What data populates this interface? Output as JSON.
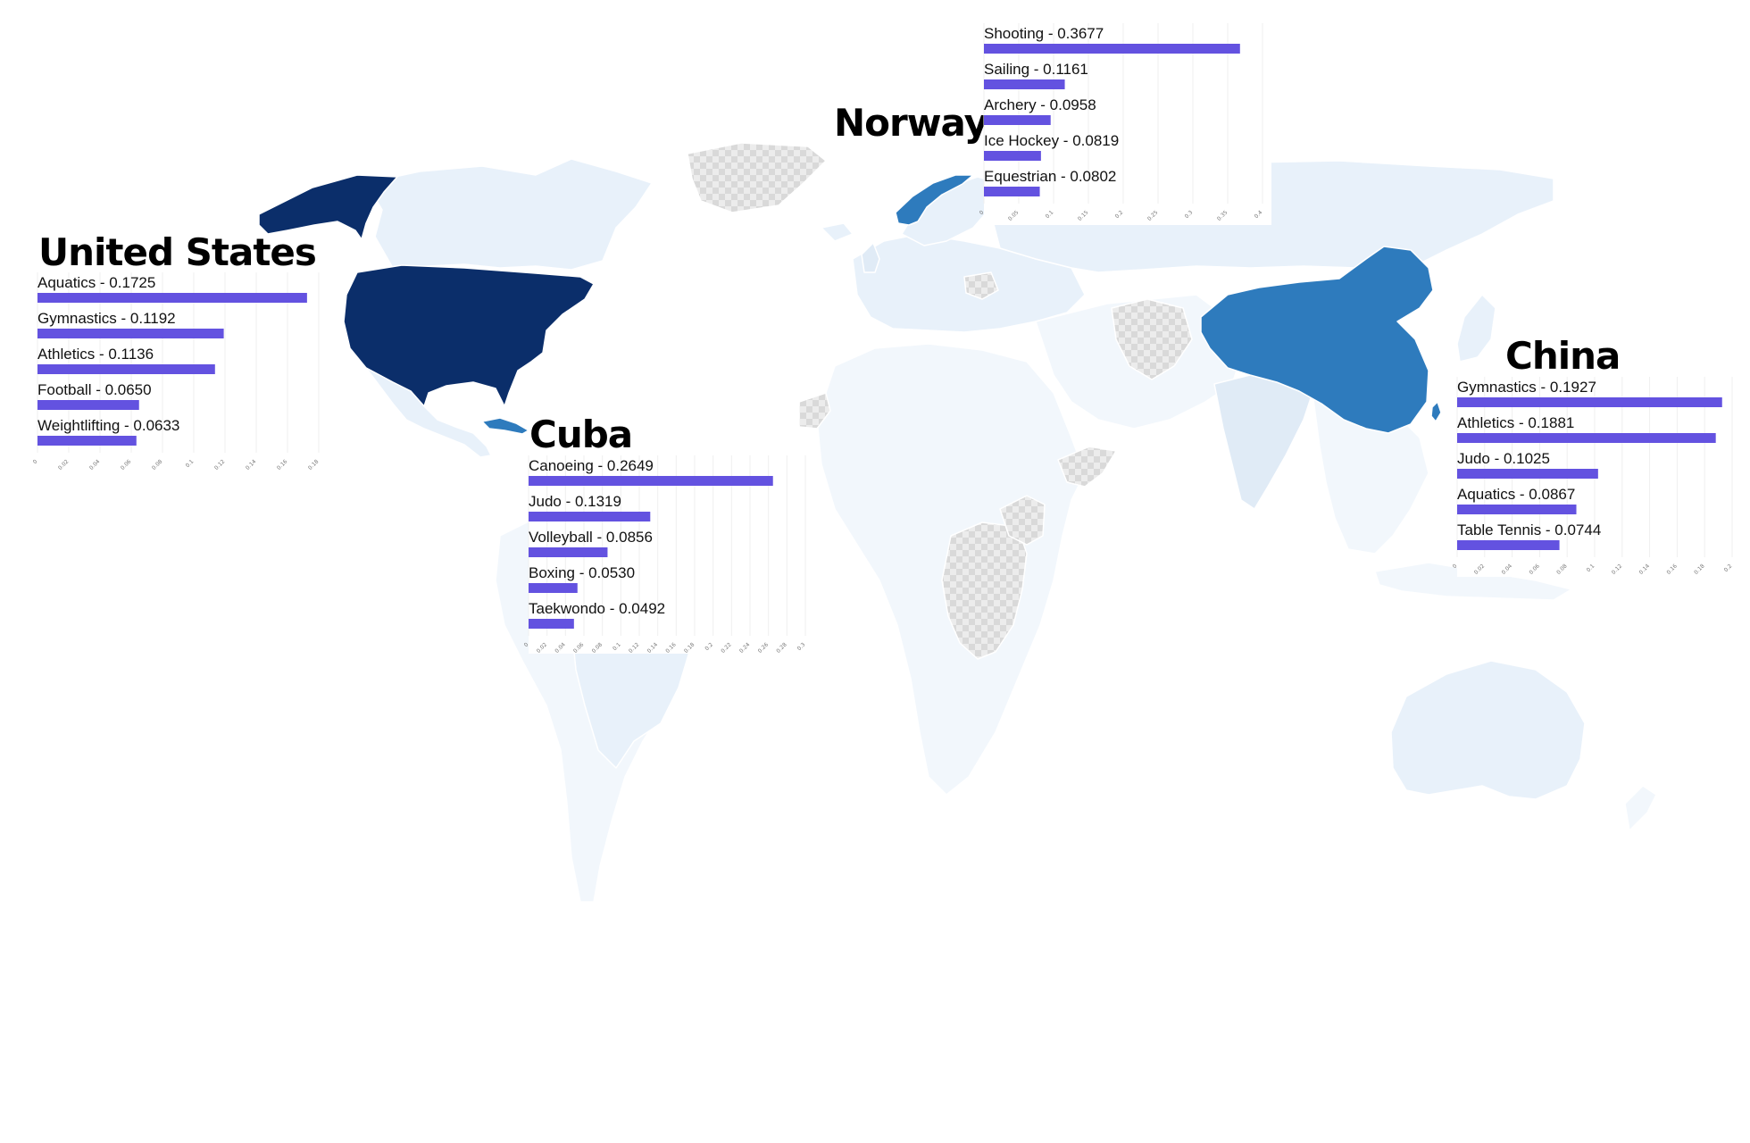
{
  "colors": {
    "background": "#ffffff",
    "land_default": "#e8f1fa",
    "land_light": "#f2f7fc",
    "no_data": "#dcdcdc",
    "rank_high": "#0b2e6a",
    "rank_mid": "#2e7bbd",
    "bar": "#6352e0"
  },
  "highlighted_countries": [
    "United States",
    "Norway",
    "Cuba",
    "China"
  ],
  "panels": [
    {
      "country": "United States",
      "title": "United States",
      "axis_max": 0.18,
      "ticks": [
        "0",
        "0.02",
        "0.04",
        "0.06",
        "0.08",
        "0.1",
        "0.12",
        "0.14",
        "0.16",
        "0.18"
      ],
      "items": [
        {
          "sport": "Aquatics",
          "value": 0.1725,
          "label": "Aquatics - 0.1725"
        },
        {
          "sport": "Gymnastics",
          "value": 0.1192,
          "label": "Gymnastics - 0.1192"
        },
        {
          "sport": "Athletics",
          "value": 0.1136,
          "label": "Athletics - 0.1136"
        },
        {
          "sport": "Football",
          "value": 0.065,
          "label": "Football - 0.0650"
        },
        {
          "sport": "Weightlifting",
          "value": 0.0633,
          "label": "Weightlifting - 0.0633"
        }
      ]
    },
    {
      "country": "Cuba",
      "title": "Cuba",
      "axis_max": 0.3,
      "ticks": [
        "0",
        "0.02",
        "0.04",
        "0.06",
        "0.08",
        "0.1",
        "0.12",
        "0.14",
        "0.16",
        "0.18",
        "0.2",
        "0.22",
        "0.24",
        "0.26",
        "0.28",
        "0.3"
      ],
      "items": [
        {
          "sport": "Canoeing",
          "value": 0.2649,
          "label": "Canoeing - 0.2649"
        },
        {
          "sport": "Judo",
          "value": 0.1319,
          "label": "Judo - 0.1319"
        },
        {
          "sport": "Volleyball",
          "value": 0.0856,
          "label": "Volleyball - 0.0856"
        },
        {
          "sport": "Boxing",
          "value": 0.053,
          "label": "Boxing - 0.0530"
        },
        {
          "sport": "Taekwondo",
          "value": 0.0492,
          "label": "Taekwondo - 0.0492"
        }
      ]
    },
    {
      "country": "Norway",
      "title": "Norway",
      "axis_max": 0.4,
      "ticks": [
        "0",
        "0.05",
        "0.1",
        "0.15",
        "0.2",
        "0.25",
        "0.3",
        "0.35",
        "0.4"
      ],
      "items": [
        {
          "sport": "Shooting",
          "value": 0.3677,
          "label": "Shooting - 0.3677"
        },
        {
          "sport": "Sailing",
          "value": 0.1161,
          "label": "Sailing - 0.1161"
        },
        {
          "sport": "Archery",
          "value": 0.0958,
          "label": "Archery - 0.0958"
        },
        {
          "sport": "Ice Hockey",
          "value": 0.0819,
          "label": "Ice Hockey - 0.0819"
        },
        {
          "sport": "Equestrian",
          "value": 0.0802,
          "label": "Equestrian - 0.0802"
        }
      ]
    },
    {
      "country": "China",
      "title": "China",
      "axis_max": 0.2,
      "ticks": [
        "0",
        "0.02",
        "0.04",
        "0.06",
        "0.08",
        "0.1",
        "0.12",
        "0.14",
        "0.16",
        "0.18",
        "0.2"
      ],
      "items": [
        {
          "sport": "Gymnastics",
          "value": 0.1927,
          "label": "Gymnastics - 0.1927"
        },
        {
          "sport": "Athletics",
          "value": 0.1881,
          "label": "Athletics - 0.1881"
        },
        {
          "sport": "Judo",
          "value": 0.1025,
          "label": "Judo - 0.1025"
        },
        {
          "sport": "Aquatics",
          "value": 0.0867,
          "label": "Aquatics - 0.0867"
        },
        {
          "sport": "Table Tennis",
          "value": 0.0744,
          "label": "Table Tennis - 0.0744"
        }
      ]
    }
  ]
}
